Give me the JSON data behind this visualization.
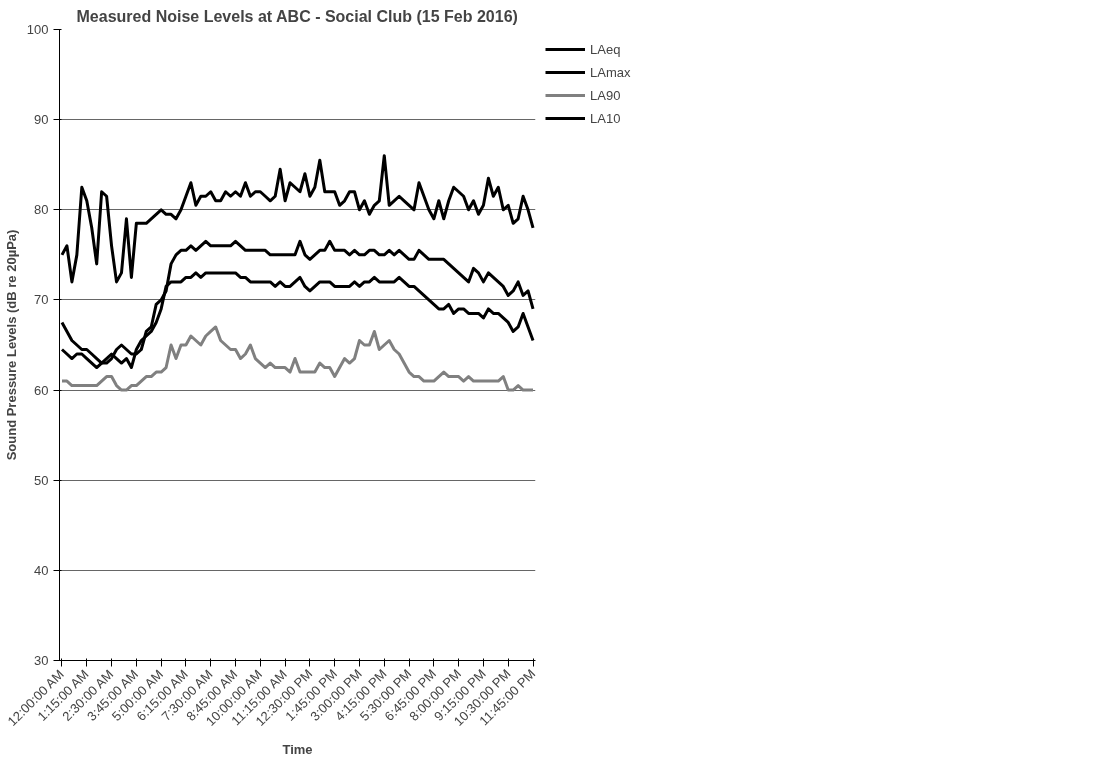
{
  "chart_data": {
    "type": "line",
    "title": "Measured Noise Levels at ABC - Social Club (15 Feb 2016)",
    "xlabel": "Time",
    "ylabel": "Sound Pressure Levels (dB re 20µPa)",
    "categories": [
      "12:00:00 AM",
      null,
      null,
      null,
      null,
      "1:15:00 AM",
      null,
      null,
      null,
      null,
      "2:30:00 AM",
      null,
      null,
      null,
      null,
      "3:45:00 AM",
      null,
      null,
      null,
      null,
      "5:00:00 AM",
      null,
      null,
      null,
      null,
      "6:15:00 AM",
      null,
      null,
      null,
      null,
      "7:30:00 AM",
      null,
      null,
      null,
      null,
      "8:45:00 AM",
      null,
      null,
      null,
      null,
      "10:00:00 AM",
      null,
      null,
      null,
      null,
      "11:15:00 AM",
      null,
      null,
      null,
      null,
      "12:30:00 PM",
      null,
      null,
      null,
      null,
      "1:45:00 PM",
      null,
      null,
      null,
      null,
      "3:00:00 PM",
      null,
      null,
      null,
      null,
      "4:15:00 PM",
      null,
      null,
      null,
      null,
      "5:30:00 PM",
      null,
      null,
      null,
      null,
      "6:45:00 PM",
      null,
      null,
      null,
      null,
      "8:00:00 PM",
      null,
      null,
      null,
      null,
      "9:15:00 PM",
      null,
      null,
      null,
      null,
      "10:30:00 PM",
      null,
      null,
      null,
      null,
      "11:45:00 PM"
    ],
    "series": [
      {
        "name": "LAeq",
        "color": "#000000",
        "values": [
          64.5,
          64,
          63.5,
          64,
          64,
          63.5,
          63,
          62.5,
          63,
          63.5,
          64,
          63.5,
          63,
          63.5,
          62.5,
          64.5,
          65.5,
          66,
          66.5,
          67.5,
          69,
          71.5,
          72,
          72,
          72,
          72.5,
          72.5,
          73,
          72.5,
          73,
          73,
          73,
          73,
          73,
          73,
          73,
          72.5,
          72.5,
          72,
          72,
          72,
          72,
          72,
          71.5,
          72,
          71.5,
          71.5,
          72,
          72.5,
          71.5,
          71,
          71.5,
          72,
          72,
          72,
          71.5,
          71.5,
          71.5,
          71.5,
          72,
          71.5,
          72,
          72,
          72.5,
          72,
          72,
          72,
          72,
          72.5,
          72,
          71.5,
          71.5,
          71,
          70.5,
          70,
          69.5,
          69,
          69,
          69.5,
          68.5,
          69,
          69,
          68.5,
          68.5,
          68.5,
          68,
          69,
          68.5,
          68.5,
          68,
          67.5,
          66.5,
          67,
          68.5,
          67,
          65.5
        ]
      },
      {
        "name": "LAmax",
        "color": "#000000",
        "values": [
          75,
          76,
          72,
          75,
          82.5,
          81,
          78,
          74,
          82,
          81.5,
          76,
          72,
          73,
          79,
          72.5,
          78.5,
          78.5,
          78.5,
          79,
          79.5,
          80,
          79.5,
          79.5,
          79,
          80,
          81.5,
          83,
          80.5,
          81.5,
          81.5,
          82,
          81,
          81,
          82,
          81.5,
          82,
          81.5,
          83,
          81.5,
          82,
          82,
          81.5,
          81,
          81.5,
          84.5,
          81,
          83,
          82.5,
          82,
          84,
          81.5,
          82.5,
          85.5,
          82,
          82,
          82,
          80.5,
          81,
          82,
          82,
          80,
          81,
          79.5,
          80.5,
          81,
          86,
          80.5,
          81,
          81.5,
          81,
          80.5,
          80,
          83,
          81.5,
          80,
          79,
          81,
          79,
          81,
          82.5,
          82,
          81.5,
          80,
          81,
          79.5,
          80.5,
          83.5,
          81.5,
          82.5,
          80,
          80.5,
          78.5,
          79,
          81.5,
          80,
          78
        ]
      },
      {
        "name": "LA90",
        "color": "#808080",
        "values": [
          61,
          61,
          60.5,
          60.5,
          60.5,
          60.5,
          60.5,
          60.5,
          61,
          61.5,
          61.5,
          60.5,
          60,
          60,
          60.5,
          60.5,
          61,
          61.5,
          61.5,
          62,
          62,
          62.5,
          65,
          63.5,
          65,
          65,
          66,
          65.5,
          65,
          66,
          66.5,
          67,
          65.5,
          65,
          64.5,
          64.5,
          63.5,
          64,
          65,
          63.5,
          63,
          62.5,
          63,
          62.5,
          62.5,
          62.5,
          62,
          63.5,
          62,
          62,
          62,
          62,
          63,
          62.5,
          62.5,
          61.5,
          62.5,
          63.5,
          63,
          63.5,
          65.5,
          65,
          65,
          66.5,
          64.5,
          65,
          65.5,
          64.5,
          64,
          63,
          62,
          61.5,
          61.5,
          61,
          61,
          61,
          61.5,
          62,
          61.5,
          61.5,
          61.5,
          61,
          61.5,
          61,
          61,
          61,
          61,
          61,
          61,
          61.5,
          60,
          60,
          60.5,
          60,
          60,
          60
        ]
      },
      {
        "name": "LA10",
        "color": "#000000",
        "values": [
          67.5,
          66.5,
          65.5,
          65,
          64.5,
          64.5,
          64,
          63.5,
          63,
          63,
          63.5,
          64.5,
          65,
          64.5,
          64,
          64,
          64.5,
          66.5,
          67,
          69.5,
          70,
          71,
          74,
          75,
          75.5,
          75.5,
          76,
          75.5,
          76,
          76.5,
          76,
          76,
          76,
          76,
          76,
          76.5,
          76,
          75.5,
          75.5,
          75.5,
          75.5,
          75.5,
          75,
          75,
          75,
          75,
          75,
          75,
          76.5,
          75,
          74.5,
          75,
          75.5,
          75.5,
          76.5,
          75.5,
          75.5,
          75.5,
          75,
          75.5,
          75,
          75,
          75.5,
          75.5,
          75,
          75,
          75.5,
          75,
          75.5,
          75,
          74.5,
          74.5,
          75.5,
          75,
          74.5,
          74.5,
          74.5,
          74.5,
          74,
          73.5,
          73,
          72.5,
          72,
          73.5,
          73,
          72,
          73,
          72.5,
          72,
          71.5,
          70.5,
          71,
          72,
          70.5,
          71,
          69
        ]
      }
    ],
    "ylim": [
      30,
      100
    ],
    "yticks": [
      30,
      40,
      50,
      60,
      70,
      80,
      90,
      100
    ],
    "grid": "y",
    "legend": "right",
    "marker": "none",
    "line_style": "solid"
  }
}
